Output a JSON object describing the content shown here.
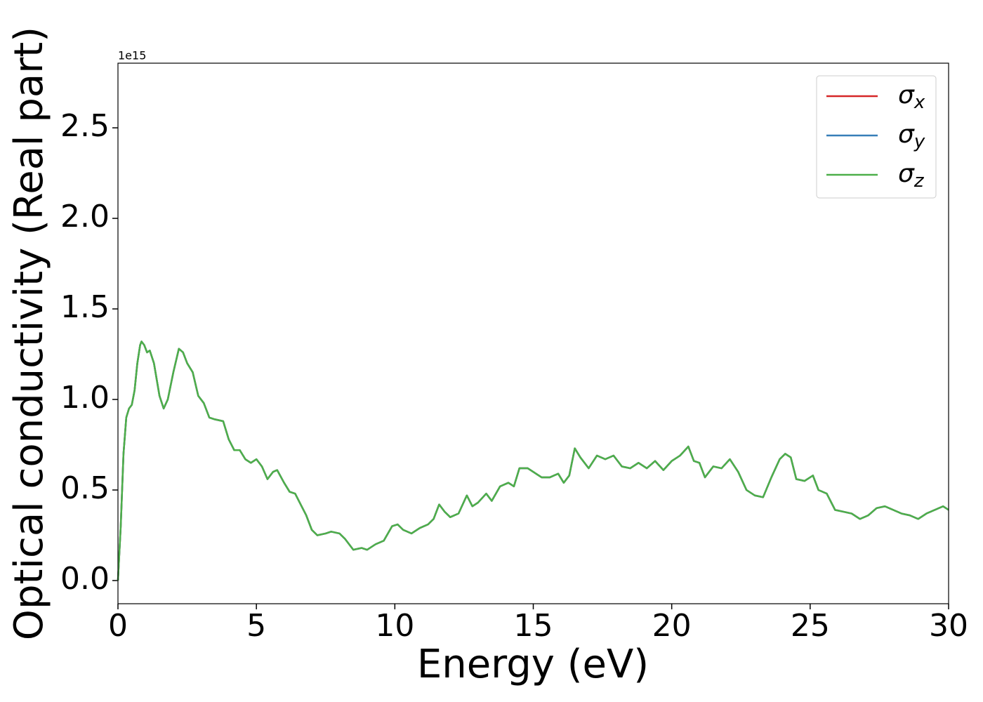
{
  "chart_data": {
    "type": "line",
    "xlabel": "Energy (eV)",
    "ylabel": "Optical conductivity (Real part)",
    "y_offset": "1e15",
    "x": [
      0,
      0.1,
      0.2,
      0.3,
      0.4,
      0.5,
      0.6,
      0.7,
      0.8,
      0.85,
      0.95,
      1.05,
      1.15,
      1.3,
      1.5,
      1.65,
      1.8,
      2.0,
      2.2,
      2.35,
      2.5,
      2.7,
      2.9,
      3.1,
      3.3,
      3.5,
      3.8,
      4.0,
      4.2,
      4.4,
      4.6,
      4.8,
      5.0,
      5.2,
      5.4,
      5.6,
      5.75,
      6.0,
      6.2,
      6.4,
      6.6,
      6.8,
      7.0,
      7.2,
      7.5,
      7.7,
      8.0,
      8.2,
      8.5,
      8.8,
      9.0,
      9.3,
      9.6,
      9.9,
      10.1,
      10.3,
      10.6,
      10.9,
      11.2,
      11.4,
      11.6,
      11.8,
      12.0,
      12.3,
      12.6,
      12.8,
      13.0,
      13.3,
      13.5,
      13.8,
      14.1,
      14.3,
      14.5,
      14.8,
      15.0,
      15.3,
      15.6,
      15.9,
      16.1,
      16.3,
      16.5,
      16.7,
      17.0,
      17.3,
      17.6,
      17.9,
      18.2,
      18.5,
      18.8,
      19.1,
      19.4,
      19.7,
      20.0,
      20.3,
      20.6,
      20.8,
      21.0,
      21.2,
      21.5,
      21.8,
      22.1,
      22.4,
      22.7,
      23.0,
      23.3,
      23.6,
      23.9,
      24.1,
      24.3,
      24.5,
      24.8,
      25.1,
      25.3,
      25.6,
      25.9,
      26.2,
      26.5,
      26.8,
      27.1,
      27.4,
      27.7,
      28.0,
      28.3,
      28.6,
      28.9,
      29.2,
      29.5,
      29.8,
      30.0
    ],
    "series": [
      {
        "name": "σx",
        "color": "#d62728",
        "values": [
          0.0,
          0.3,
          0.7,
          0.9,
          0.95,
          0.97,
          1.05,
          1.2,
          1.3,
          1.32,
          1.3,
          1.26,
          1.27,
          1.2,
          1.02,
          0.95,
          1.0,
          1.15,
          1.28,
          1.26,
          1.2,
          1.15,
          1.02,
          0.98,
          0.9,
          0.89,
          0.88,
          0.78,
          0.72,
          0.72,
          0.67,
          0.65,
          0.67,
          0.63,
          0.56,
          0.6,
          0.61,
          0.54,
          0.49,
          0.48,
          0.42,
          0.36,
          0.28,
          0.25,
          0.26,
          0.27,
          0.26,
          0.23,
          0.17,
          0.18,
          0.17,
          0.2,
          0.22,
          0.3,
          0.31,
          0.28,
          0.26,
          0.29,
          0.31,
          0.34,
          0.42,
          0.38,
          0.35,
          0.37,
          0.47,
          0.41,
          0.43,
          0.48,
          0.44,
          0.52,
          0.54,
          0.52,
          0.62,
          0.62,
          0.6,
          0.57,
          0.57,
          0.59,
          0.54,
          0.58,
          0.73,
          0.68,
          0.62,
          0.69,
          0.67,
          0.69,
          0.63,
          0.62,
          0.65,
          0.62,
          0.66,
          0.61,
          0.66,
          0.69,
          0.74,
          0.66,
          0.65,
          0.57,
          0.63,
          0.62,
          0.67,
          0.6,
          0.5,
          0.47,
          0.46,
          0.57,
          0.67,
          0.7,
          0.68,
          0.56,
          0.55,
          0.58,
          0.5,
          0.48,
          0.39,
          0.38,
          0.37,
          0.34,
          0.36,
          0.4,
          0.41,
          0.39,
          0.37,
          0.36,
          0.34,
          0.37,
          0.39,
          0.41,
          0.39
        ]
      },
      {
        "name": "σy",
        "color": "#377eb8",
        "values": [
          0.0,
          0.3,
          0.7,
          0.9,
          0.95,
          0.97,
          1.05,
          1.2,
          1.3,
          1.32,
          1.3,
          1.26,
          1.27,
          1.2,
          1.02,
          0.95,
          1.0,
          1.15,
          1.28,
          1.26,
          1.2,
          1.15,
          1.02,
          0.98,
          0.9,
          0.89,
          0.88,
          0.78,
          0.72,
          0.72,
          0.67,
          0.65,
          0.67,
          0.63,
          0.56,
          0.6,
          0.61,
          0.54,
          0.49,
          0.48,
          0.42,
          0.36,
          0.28,
          0.25,
          0.26,
          0.27,
          0.26,
          0.23,
          0.17,
          0.18,
          0.17,
          0.2,
          0.22,
          0.3,
          0.31,
          0.28,
          0.26,
          0.29,
          0.31,
          0.34,
          0.42,
          0.38,
          0.35,
          0.37,
          0.47,
          0.41,
          0.43,
          0.48,
          0.44,
          0.52,
          0.54,
          0.52,
          0.62,
          0.62,
          0.6,
          0.57,
          0.57,
          0.59,
          0.54,
          0.58,
          0.73,
          0.68,
          0.62,
          0.69,
          0.67,
          0.69,
          0.63,
          0.62,
          0.65,
          0.62,
          0.66,
          0.61,
          0.66,
          0.69,
          0.74,
          0.66,
          0.65,
          0.57,
          0.63,
          0.62,
          0.67,
          0.6,
          0.5,
          0.47,
          0.46,
          0.57,
          0.67,
          0.7,
          0.68,
          0.56,
          0.55,
          0.58,
          0.5,
          0.48,
          0.39,
          0.38,
          0.37,
          0.34,
          0.36,
          0.4,
          0.41,
          0.39,
          0.37,
          0.36,
          0.34,
          0.37,
          0.39,
          0.41,
          0.39
        ]
      },
      {
        "name": "σz",
        "color": "#4daf4a",
        "values": [
          0.0,
          0.3,
          0.7,
          0.9,
          0.95,
          0.97,
          1.05,
          1.2,
          1.3,
          1.32,
          1.3,
          1.26,
          1.27,
          1.2,
          1.02,
          0.95,
          1.0,
          1.15,
          1.28,
          1.26,
          1.2,
          1.15,
          1.02,
          0.98,
          0.9,
          0.89,
          0.88,
          0.78,
          0.72,
          0.72,
          0.67,
          0.65,
          0.67,
          0.63,
          0.56,
          0.6,
          0.61,
          0.54,
          0.49,
          0.48,
          0.42,
          0.36,
          0.28,
          0.25,
          0.26,
          0.27,
          0.26,
          0.23,
          0.17,
          0.18,
          0.17,
          0.2,
          0.22,
          0.3,
          0.31,
          0.28,
          0.26,
          0.29,
          0.31,
          0.34,
          0.42,
          0.38,
          0.35,
          0.37,
          0.47,
          0.41,
          0.43,
          0.48,
          0.44,
          0.52,
          0.54,
          0.52,
          0.62,
          0.62,
          0.6,
          0.57,
          0.57,
          0.59,
          0.54,
          0.58,
          0.73,
          0.68,
          0.62,
          0.69,
          0.67,
          0.69,
          0.63,
          0.62,
          0.65,
          0.62,
          0.66,
          0.61,
          0.66,
          0.69,
          0.74,
          0.66,
          0.65,
          0.57,
          0.63,
          0.62,
          0.67,
          0.6,
          0.5,
          0.47,
          0.46,
          0.57,
          0.67,
          0.7,
          0.68,
          0.56,
          0.55,
          0.58,
          0.5,
          0.48,
          0.39,
          0.38,
          0.37,
          0.34,
          0.36,
          0.4,
          0.41,
          0.39,
          0.37,
          0.36,
          0.34,
          0.37,
          0.39,
          0.41,
          0.39
        ]
      }
    ],
    "xlim": [
      0,
      30
    ],
    "xticks": [
      0,
      5,
      10,
      15,
      20,
      25,
      30
    ],
    "ylim": [
      -0.128,
      2.857
    ],
    "yticks": [
      {
        "value": 0,
        "label": "0.0"
      },
      {
        "value": 0.5,
        "label": "0.5"
      },
      {
        "value": 1,
        "label": "1.0"
      },
      {
        "value": 1.5,
        "label": "1.5"
      },
      {
        "value": 2,
        "label": "2.0"
      },
      {
        "value": 2.5,
        "label": "2.5"
      }
    ],
    "grid": false,
    "legend": "upper right"
  }
}
